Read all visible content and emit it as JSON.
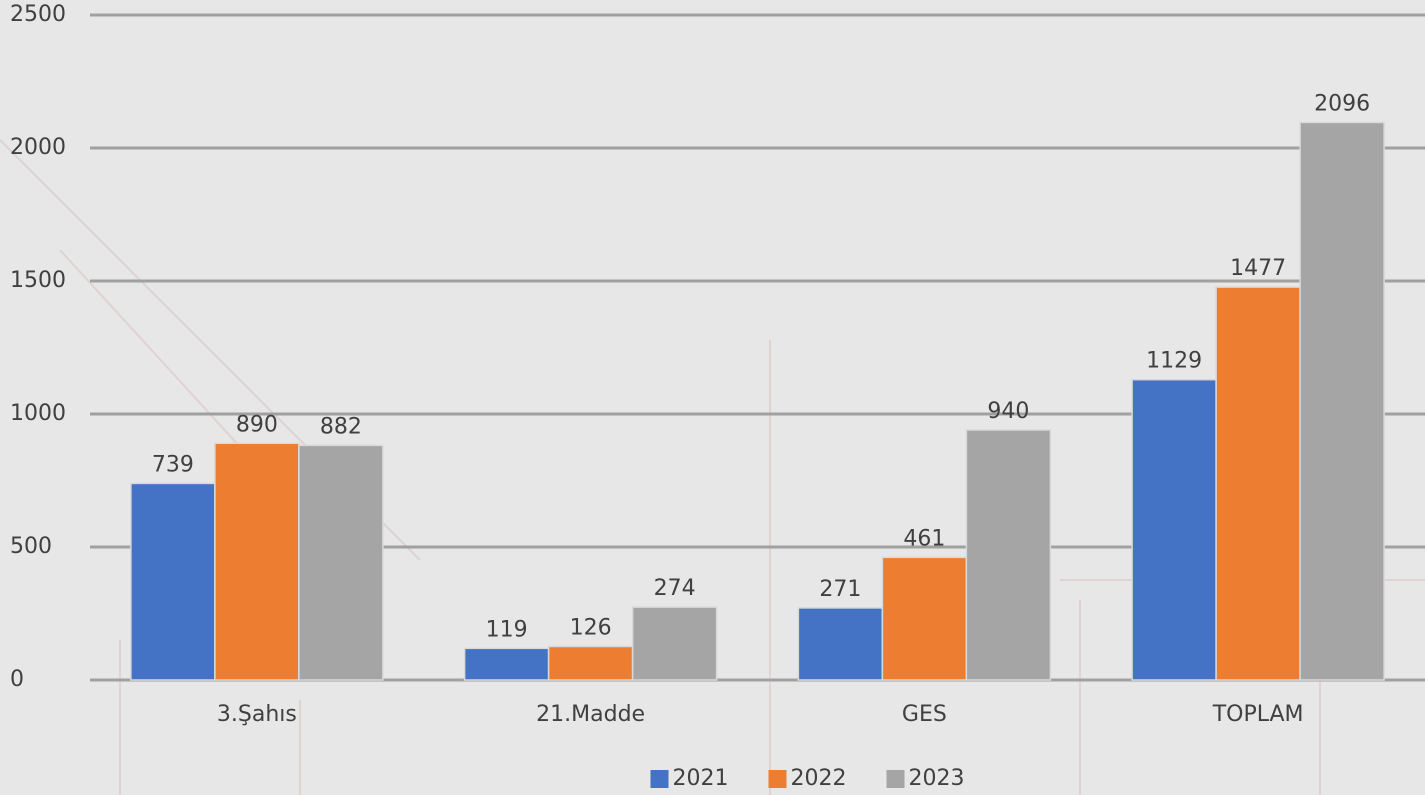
{
  "chart_data": {
    "type": "bar",
    "categories": [
      "3.Şahıs",
      "21.Madde",
      "GES",
      "TOPLAM"
    ],
    "series": [
      {
        "name": "2021",
        "color": "#4472c4",
        "values": [
          739,
          119,
          271,
          1129
        ]
      },
      {
        "name": "2022",
        "color": "#ed7d31",
        "values": [
          890,
          126,
          461,
          1477
        ]
      },
      {
        "name": "2023",
        "color": "#a5a5a5",
        "values": [
          882,
          274,
          940,
          2096
        ]
      }
    ],
    "ylim": [
      0,
      2500
    ],
    "yticks": [
      0,
      500,
      1000,
      1500,
      2000,
      2500
    ],
    "grid": true,
    "legend": "bottom"
  }
}
